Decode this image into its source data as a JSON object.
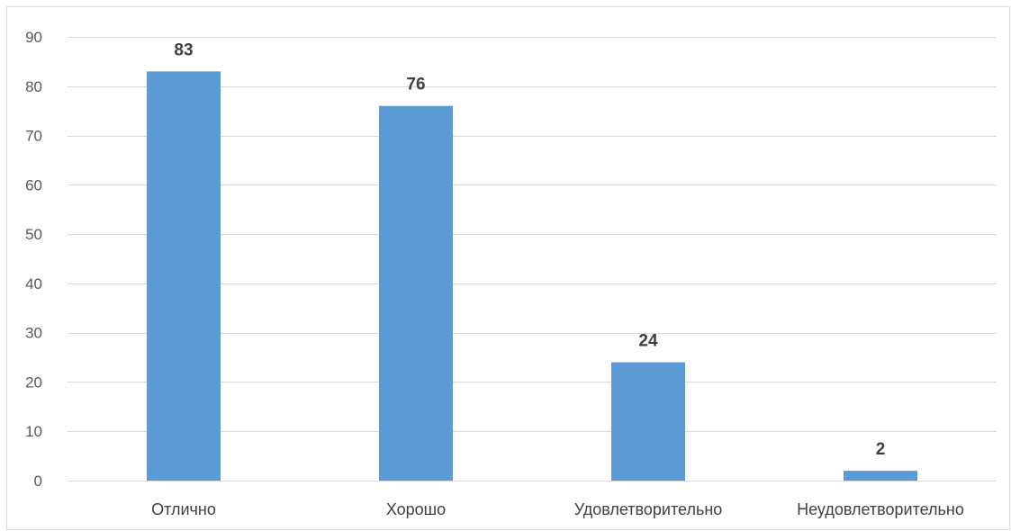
{
  "chart_data": {
    "type": "bar",
    "categories": [
      "Отлично",
      "Хорошо",
      "Удовлетворительно",
      "Неудовлетворительно"
    ],
    "values": [
      83,
      76,
      24,
      2
    ],
    "data_labels": [
      "83",
      "76",
      "24",
      "2"
    ],
    "title": "",
    "xlabel": "",
    "ylabel": "",
    "ylim": [
      0,
      90
    ],
    "yticks": [
      0,
      10,
      20,
      30,
      40,
      50,
      60,
      70,
      80,
      90
    ],
    "ytick_labels": [
      "0",
      "10",
      "20",
      "30",
      "40",
      "50",
      "60",
      "70",
      "80",
      "90"
    ],
    "grid": true,
    "legend": "none",
    "colors": {
      "bar": "#5b9bd5",
      "grid": "#d9d9d9",
      "tick_text": "#595959",
      "label_text": "#404040",
      "border": "#d9d9d9"
    }
  }
}
